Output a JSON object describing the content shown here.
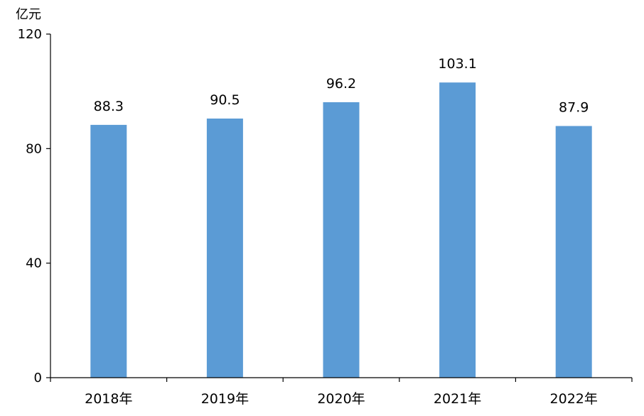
{
  "chart_data": {
    "type": "bar",
    "title": "",
    "unit_label": "亿元",
    "xlabel": "",
    "ylabel": "",
    "categories": [
      "2018年",
      "2019年",
      "2020年",
      "2021年",
      "2022年"
    ],
    "values": [
      88.3,
      90.5,
      96.2,
      103.1,
      87.9
    ],
    "data_labels": [
      "88.3",
      "90.5",
      "96.2",
      "103.1",
      "87.9"
    ],
    "ylim": [
      0,
      120
    ],
    "yticks": [
      0,
      40,
      80,
      120
    ],
    "grid": false,
    "legend": "none",
    "colors": {
      "bar": "#5b9bd5",
      "axis": "#000000",
      "text": "#000000"
    }
  }
}
